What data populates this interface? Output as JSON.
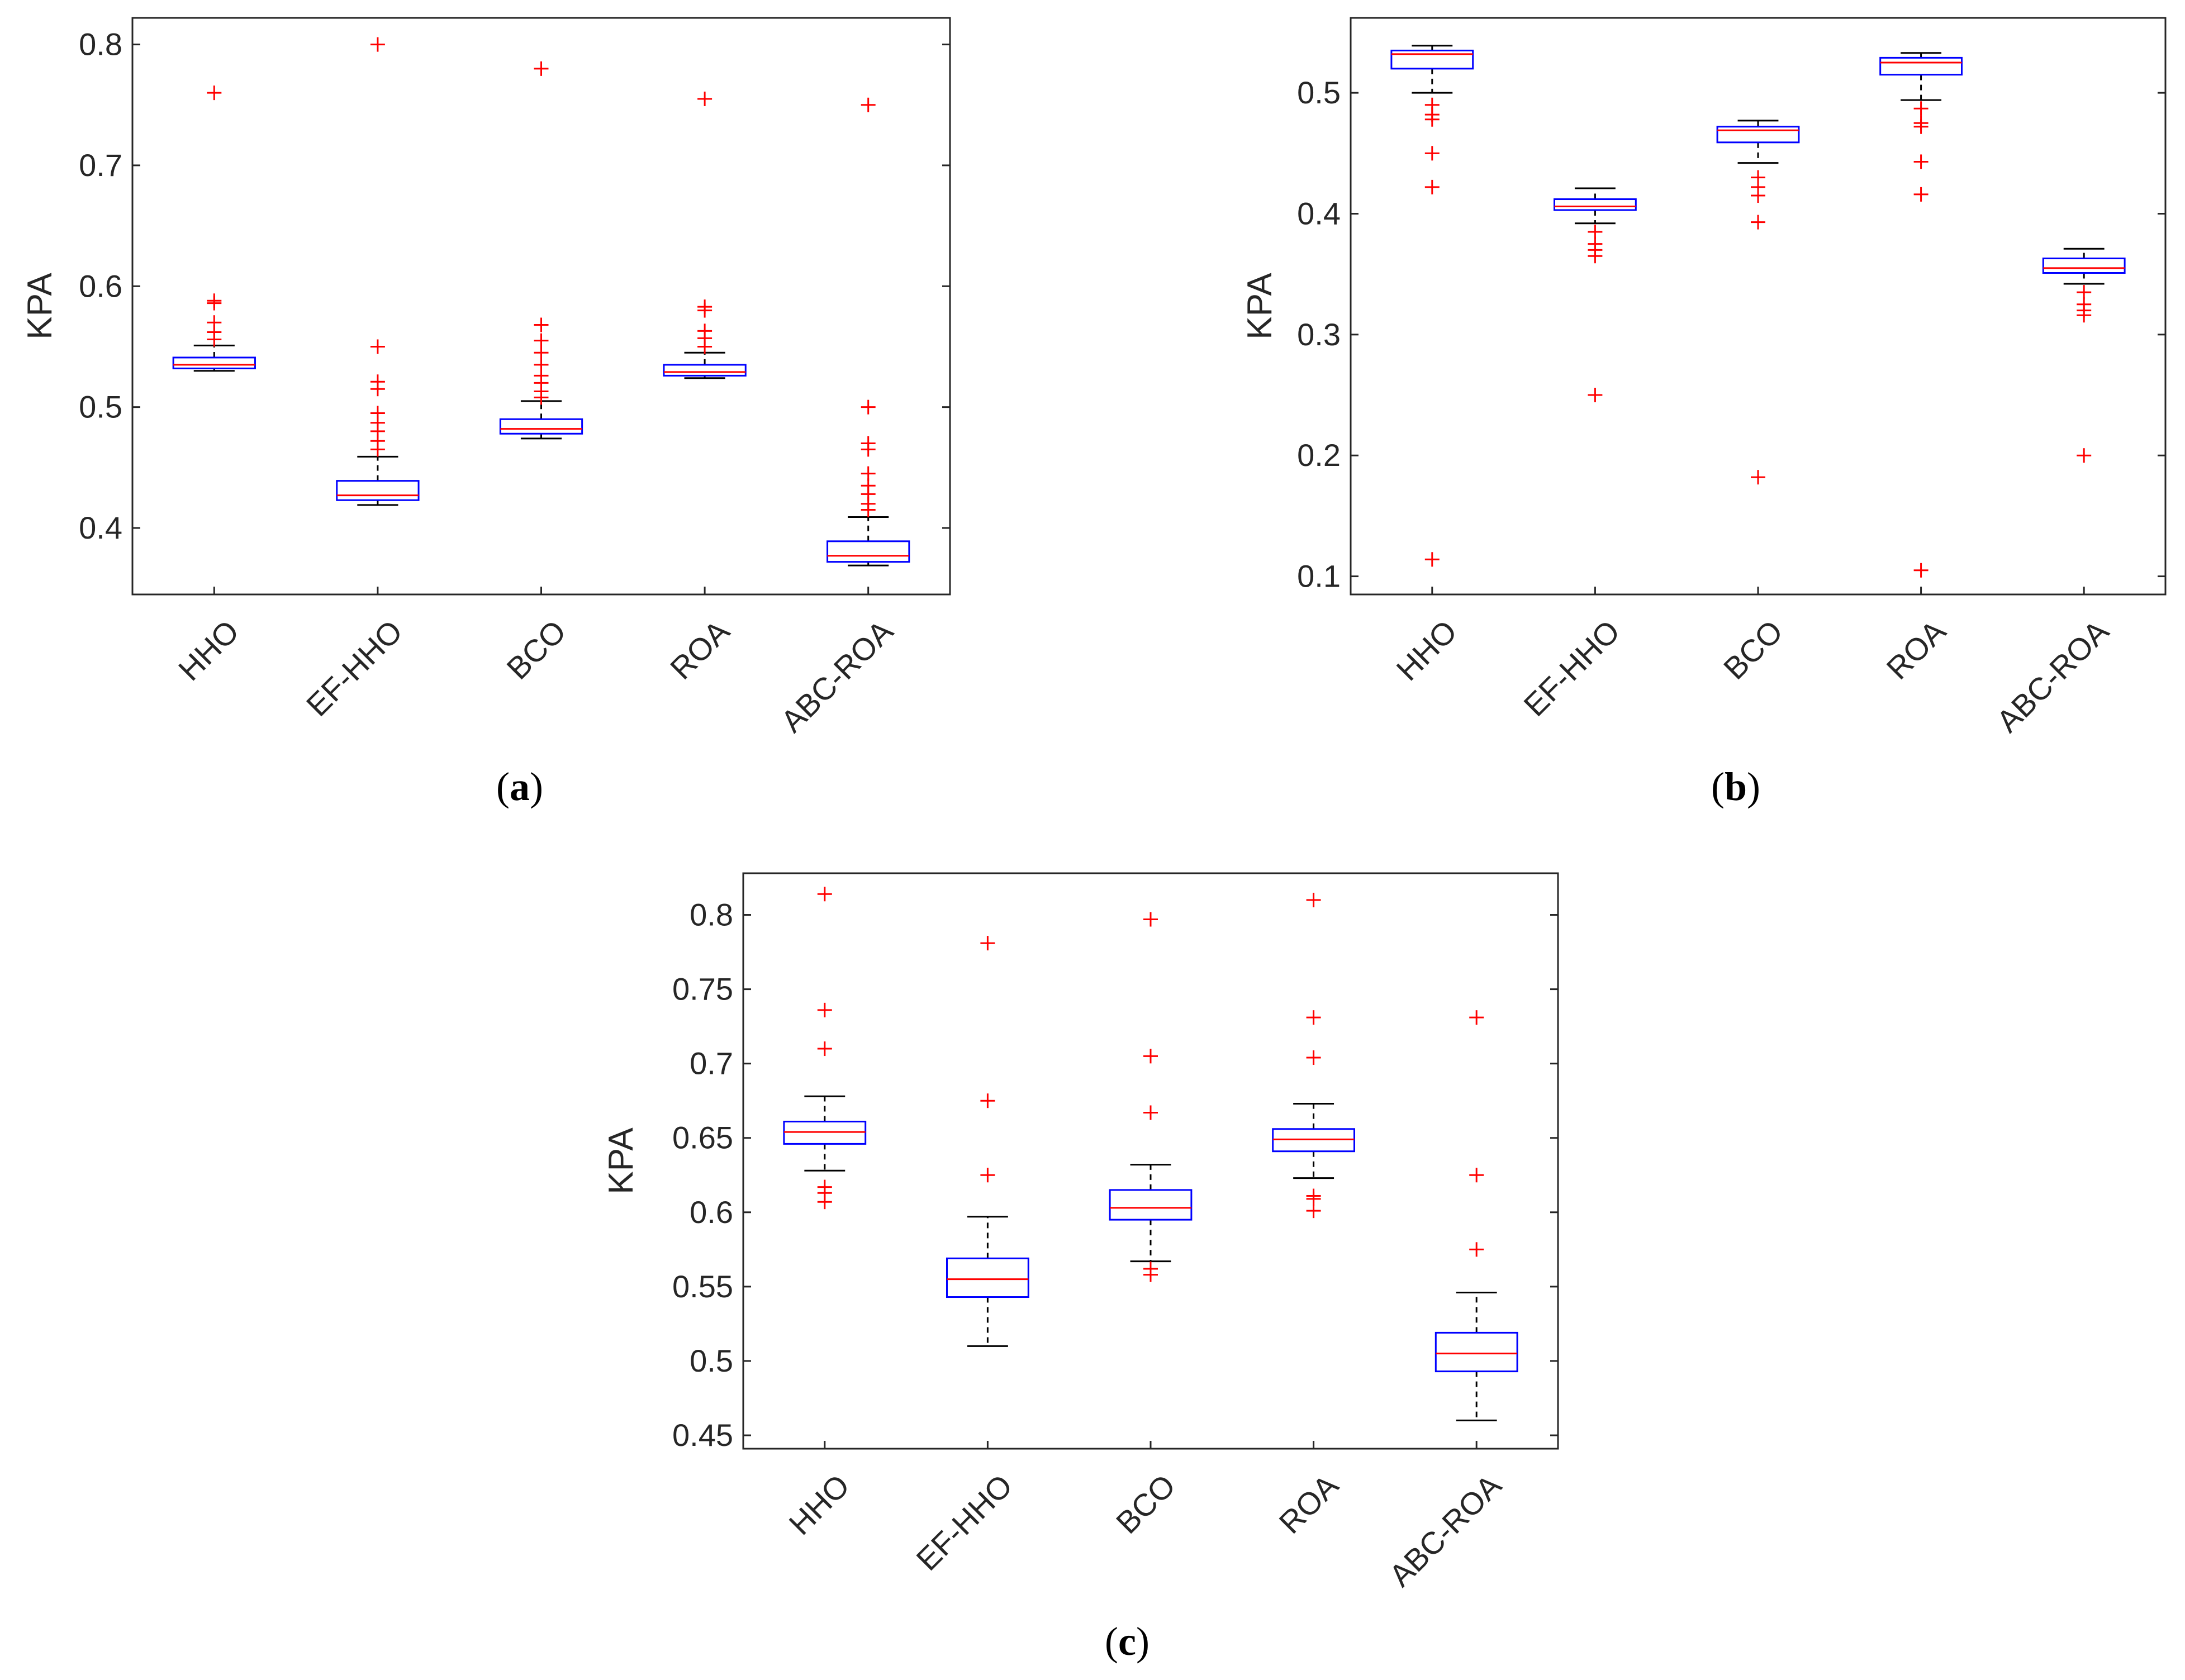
{
  "colors": {
    "box": "#0000ff",
    "median": "#ff0000",
    "outlier": "#ff0000",
    "whisker": "#000000",
    "axis": "#262626"
  },
  "chart_data": [
    {
      "panel": "a",
      "caption": {
        "open": "(",
        "letter": "a",
        "close": ")"
      },
      "type": "boxplot",
      "ylabel": "KPA",
      "ylim": [
        0.345,
        0.822
      ],
      "yticks": [
        0.4,
        0.5,
        0.6,
        0.7,
        0.8
      ],
      "ytick_labels": [
        "0.4",
        "0.5",
        "0.6",
        "0.7",
        "0.8"
      ],
      "categories": [
        "HHO",
        "EF-HHO",
        "BCO",
        "ROA",
        "ABC-ROA"
      ],
      "boxes": [
        {
          "whisker_low": 0.53,
          "q1": 0.532,
          "median": 0.535,
          "q3": 0.541,
          "whisker_high": 0.551,
          "outliers": [
            0.76,
            0.588,
            0.586,
            0.57,
            0.562,
            0.556
          ]
        },
        {
          "whisker_low": 0.419,
          "q1": 0.423,
          "median": 0.427,
          "q3": 0.439,
          "whisker_high": 0.459,
          "outliers": [
            0.8,
            0.55,
            0.521,
            0.515,
            0.495,
            0.487,
            0.48,
            0.472,
            0.465
          ]
        },
        {
          "whisker_low": 0.474,
          "q1": 0.478,
          "median": 0.482,
          "q3": 0.49,
          "whisker_high": 0.505,
          "outliers": [
            0.78,
            0.568,
            0.555,
            0.545,
            0.535,
            0.526,
            0.52,
            0.513,
            0.508
          ]
        },
        {
          "whisker_low": 0.524,
          "q1": 0.526,
          "median": 0.529,
          "q3": 0.535,
          "whisker_high": 0.545,
          "outliers": [
            0.755,
            0.583,
            0.58,
            0.563,
            0.557,
            0.55
          ]
        },
        {
          "whisker_low": 0.369,
          "q1": 0.372,
          "median": 0.377,
          "q3": 0.389,
          "whisker_high": 0.409,
          "outliers": [
            0.75,
            0.5,
            0.47,
            0.465,
            0.445,
            0.435,
            0.428,
            0.42,
            0.415
          ]
        }
      ]
    },
    {
      "panel": "b",
      "caption": {
        "open": "(",
        "letter": "b",
        "close": ")"
      },
      "type": "boxplot",
      "ylabel": "KPA",
      "ylim": [
        0.085,
        0.562
      ],
      "yticks": [
        0.1,
        0.2,
        0.3,
        0.4,
        0.5
      ],
      "ytick_labels": [
        "0.1",
        "0.2",
        "0.3",
        "0.4",
        "0.5"
      ],
      "categories": [
        "HHO",
        "EF-HHO",
        "BCO",
        "ROA",
        "ABC-ROA"
      ],
      "boxes": [
        {
          "whisker_low": 0.5,
          "q1": 0.52,
          "median": 0.532,
          "q3": 0.535,
          "whisker_high": 0.539,
          "outliers": [
            0.49,
            0.482,
            0.478,
            0.45,
            0.422,
            0.114
          ]
        },
        {
          "whisker_low": 0.392,
          "q1": 0.403,
          "median": 0.406,
          "q3": 0.412,
          "whisker_high": 0.421,
          "outliers": [
            0.385,
            0.375,
            0.37,
            0.365,
            0.25
          ]
        },
        {
          "whisker_low": 0.442,
          "q1": 0.459,
          "median": 0.469,
          "q3": 0.472,
          "whisker_high": 0.477,
          "outliers": [
            0.43,
            0.422,
            0.415,
            0.393,
            0.182
          ]
        },
        {
          "whisker_low": 0.494,
          "q1": 0.515,
          "median": 0.525,
          "q3": 0.529,
          "whisker_high": 0.533,
          "outliers": [
            0.487,
            0.475,
            0.472,
            0.443,
            0.416,
            0.105
          ]
        },
        {
          "whisker_low": 0.342,
          "q1": 0.351,
          "median": 0.355,
          "q3": 0.363,
          "whisker_high": 0.371,
          "outliers": [
            0.335,
            0.325,
            0.32,
            0.316,
            0.2
          ]
        }
      ]
    },
    {
      "panel": "c",
      "caption": {
        "open": "(",
        "letter": "c",
        "close": ")"
      },
      "type": "boxplot",
      "ylabel": "KPA",
      "ylim": [
        0.441,
        0.828
      ],
      "yticks": [
        0.45,
        0.5,
        0.55,
        0.6,
        0.65,
        0.7,
        0.75,
        0.8
      ],
      "ytick_labels": [
        "0.45",
        "0.5",
        "0.55",
        "0.6",
        "0.65",
        "0.7",
        "0.75",
        "0.8"
      ],
      "categories": [
        "HHO",
        "EF-HHO",
        "BCO",
        "ROA",
        "ABC-ROA"
      ],
      "boxes": [
        {
          "whisker_low": 0.628,
          "q1": 0.646,
          "median": 0.654,
          "q3": 0.661,
          "whisker_high": 0.678,
          "outliers": [
            0.814,
            0.736,
            0.71,
            0.617,
            0.613,
            0.607
          ]
        },
        {
          "whisker_low": 0.51,
          "q1": 0.543,
          "median": 0.555,
          "q3": 0.569,
          "whisker_high": 0.597,
          "outliers": [
            0.781,
            0.675,
            0.625
          ]
        },
        {
          "whisker_low": 0.567,
          "q1": 0.595,
          "median": 0.603,
          "q3": 0.615,
          "whisker_high": 0.632,
          "outliers": [
            0.797,
            0.705,
            0.667,
            0.562,
            0.558
          ]
        },
        {
          "whisker_low": 0.623,
          "q1": 0.641,
          "median": 0.649,
          "q3": 0.656,
          "whisker_high": 0.673,
          "outliers": [
            0.81,
            0.731,
            0.704,
            0.611,
            0.609,
            0.601
          ]
        },
        {
          "whisker_low": 0.46,
          "q1": 0.493,
          "median": 0.505,
          "q3": 0.519,
          "whisker_high": 0.546,
          "outliers": [
            0.731,
            0.625,
            0.575
          ]
        }
      ]
    }
  ]
}
